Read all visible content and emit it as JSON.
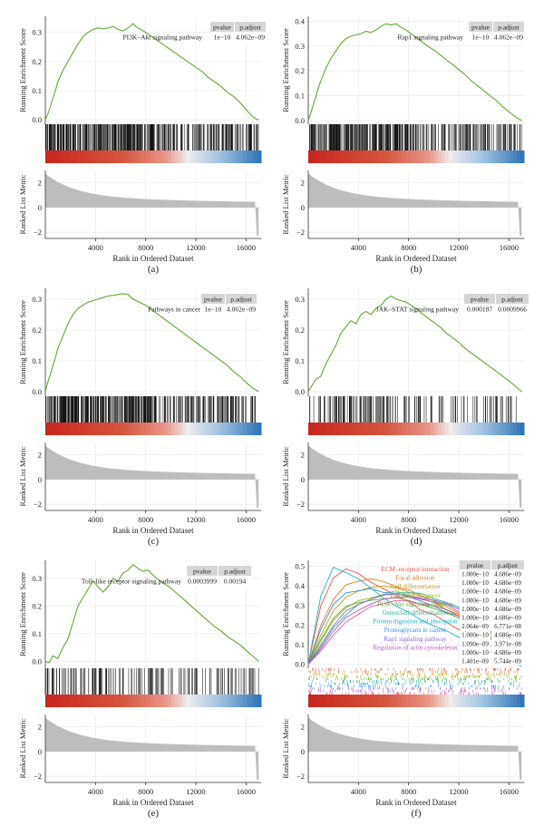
{
  "figure": {
    "colors": {
      "curve": "#5fa832",
      "curve_f": [
        "#e8534a",
        "#e07b2a",
        "#c9a017",
        "#9ab51c",
        "#5fb037",
        "#2db08e",
        "#1fb2c9",
        "#3b8fd8",
        "#8c6ad6",
        "#c054c3",
        "#e0559a"
      ],
      "ranked": "#bdbdbd",
      "table_header": "#d6d6d6",
      "grid": "#ebebeb"
    }
  },
  "panels": [
    {
      "id": "a",
      "caption": "(a)",
      "pathway": "PI3K–Akt signaling pathway",
      "table": {
        "headers": [
          "pvalue",
          "p.adjust"
        ],
        "rows": [
          [
            "1e−10",
            "4.062e−09"
          ]
        ]
      },
      "ticks_es": [
        "0.3",
        "0.2",
        "0.1",
        "0.0"
      ],
      "ticks_es_values": [
        0.3,
        0.2,
        0.1,
        0.0
      ],
      "es_ylim": [
        -0.015,
        0.355
      ],
      "ticks_rlm": [
        "2",
        "0",
        "−2"
      ],
      "ticks_rlm_values": [
        2,
        0,
        -2
      ],
      "ticks_x": [
        "4000",
        "8000",
        "12000",
        "16000"
      ],
      "ticks_x_values": [
        4000,
        8000,
        12000,
        16000
      ],
      "ylabel_es": "Running Enrichment Score",
      "ylabel_rlm": "Ranked List Metric",
      "xlabel": "Rank in Ordered Dataset",
      "chart_data": {
        "type": "line",
        "x": [
          0,
          200,
          500,
          800,
          1000,
          1400,
          1800,
          2200,
          2600,
          3000,
          3400,
          3800,
          4200,
          4600,
          5000,
          5400,
          5800,
          6200,
          6600,
          7000,
          7200,
          7600,
          8000,
          8500,
          9000,
          9500,
          10000,
          10500,
          11000,
          11500,
          12000,
          12500,
          13000,
          13500,
          14000,
          14500,
          15000,
          15500,
          16000,
          16500,
          16800,
          17000
        ],
        "y": [
          0.0,
          0.02,
          0.06,
          0.1,
          0.13,
          0.17,
          0.2,
          0.23,
          0.26,
          0.285,
          0.3,
          0.31,
          0.315,
          0.312,
          0.315,
          0.32,
          0.31,
          0.305,
          0.315,
          0.33,
          0.32,
          0.31,
          0.3,
          0.285,
          0.27,
          0.255,
          0.24,
          0.225,
          0.21,
          0.195,
          0.18,
          0.165,
          0.145,
          0.13,
          0.115,
          0.095,
          0.08,
          0.06,
          0.035,
          0.012,
          0.003,
          0.0
        ]
      }
    },
    {
      "id": "b",
      "caption": "(b)",
      "pathway": "Rap1 signaling pathway",
      "table": {
        "headers": [
          "pvalue",
          "p.adjust"
        ],
        "rows": [
          [
            "1e−10",
            "4.062e−09"
          ]
        ]
      },
      "ticks_es": [
        "0.4",
        "0.3",
        "0.2",
        "0.1",
        "0.0"
      ],
      "ticks_es_values": [
        0.4,
        0.3,
        0.2,
        0.1,
        0.0
      ],
      "es_ylim": [
        -0.015,
        0.42
      ],
      "ticks_rlm": [
        "2",
        "0",
        "−2"
      ],
      "ticks_rlm_values": [
        2,
        0,
        -2
      ],
      "ticks_x": [
        "4000",
        "8000",
        "12000",
        "16000"
      ],
      "ticks_x_values": [
        4000,
        8000,
        12000,
        16000
      ],
      "ylabel_es": "Running Enrichment Score",
      "ylabel_rlm": "Ranked List Metric",
      "xlabel": "Rank in Ordered Dataset",
      "chart_data": {
        "type": "line",
        "x": [
          0,
          200,
          500,
          800,
          1000,
          1400,
          1800,
          2200,
          2600,
          3000,
          3400,
          3800,
          4200,
          4600,
          5000,
          5400,
          5800,
          6200,
          6600,
          7000,
          7400,
          7800,
          8200,
          8600,
          9000,
          9500,
          10000,
          10500,
          11000,
          11500,
          12000,
          12500,
          13000,
          13500,
          14000,
          14500,
          15000,
          15500,
          16000,
          16500,
          17000
        ],
        "y": [
          0.0,
          0.03,
          0.08,
          0.13,
          0.16,
          0.21,
          0.25,
          0.28,
          0.31,
          0.33,
          0.34,
          0.345,
          0.35,
          0.36,
          0.355,
          0.365,
          0.38,
          0.39,
          0.385,
          0.39,
          0.375,
          0.365,
          0.35,
          0.335,
          0.32,
          0.3,
          0.285,
          0.265,
          0.245,
          0.225,
          0.205,
          0.185,
          0.16,
          0.14,
          0.12,
          0.1,
          0.08,
          0.055,
          0.035,
          0.015,
          0.0
        ]
      }
    },
    {
      "id": "c",
      "caption": "(c)",
      "pathway": "Pathways in cancer",
      "table": {
        "headers": [
          "pvalue",
          "p.adjust"
        ],
        "rows": [
          [
            "1e−10",
            "4.062e−09"
          ]
        ]
      },
      "ticks_es": [
        "0.3",
        "0.2",
        "0.1",
        "0.0"
      ],
      "ticks_es_values": [
        0.3,
        0.2,
        0.1,
        0.0
      ],
      "es_ylim": [
        -0.015,
        0.335
      ],
      "ticks_rlm": [
        "2",
        "0",
        "−2"
      ],
      "ticks_rlm_values": [
        2,
        0,
        -2
      ],
      "ticks_x": [
        "4000",
        "8000",
        "12000",
        "16000"
      ],
      "ticks_x_values": [
        4000,
        8000,
        12000,
        16000
      ],
      "ylabel_es": "Running Enrichment Score",
      "ylabel_rlm": "Ranked List Metric",
      "xlabel": "Rank in Ordered Dataset",
      "chart_data": {
        "type": "line",
        "x": [
          0,
          200,
          500,
          800,
          1000,
          1400,
          1800,
          2200,
          2600,
          3000,
          3400,
          3800,
          4200,
          4600,
          5000,
          5400,
          5800,
          6200,
          6600,
          7000,
          7500,
          8000,
          8500,
          9000,
          9500,
          10000,
          10500,
          11000,
          11500,
          12000,
          12500,
          13000,
          13500,
          14000,
          14500,
          15000,
          15500,
          16000,
          16500,
          17000
        ],
        "y": [
          0.0,
          0.03,
          0.07,
          0.11,
          0.14,
          0.18,
          0.22,
          0.25,
          0.27,
          0.28,
          0.29,
          0.295,
          0.3,
          0.305,
          0.31,
          0.312,
          0.315,
          0.318,
          0.315,
          0.3,
          0.29,
          0.28,
          0.265,
          0.25,
          0.235,
          0.22,
          0.205,
          0.19,
          0.175,
          0.16,
          0.145,
          0.13,
          0.115,
          0.1,
          0.085,
          0.065,
          0.05,
          0.03,
          0.012,
          0.0
        ]
      }
    },
    {
      "id": "d",
      "caption": "(d)",
      "pathway": "JAK–STAT signaling pathway",
      "table": {
        "headers": [
          "pvalue",
          "p.adjust"
        ],
        "rows": [
          [
            "0.000187",
            "0.0009966"
          ]
        ]
      },
      "ticks_es": [
        "0.3",
        "0.2",
        "0.1",
        "0.0"
      ],
      "ticks_es_values": [
        0.3,
        0.2,
        0.1,
        0.0
      ],
      "es_ylim": [
        -0.015,
        0.335
      ],
      "ticks_rlm": [
        "2",
        "0",
        "−2"
      ],
      "ticks_rlm_values": [
        2,
        0,
        -2
      ],
      "ticks_x": [
        "4000",
        "8000",
        "12000",
        "16000"
      ],
      "ticks_x_values": [
        4000,
        8000,
        12000,
        16000
      ],
      "ylabel_es": "Running Enrichment Score",
      "ylabel_rlm": "Ranked List Metric",
      "xlabel": "Rank in Ordered Dataset",
      "chart_data": {
        "type": "line",
        "x": [
          0,
          300,
          600,
          1000,
          1400,
          1800,
          2200,
          2600,
          3000,
          3400,
          3800,
          4200,
          4600,
          5000,
          5400,
          5800,
          6200,
          6600,
          7000,
          7400,
          7800,
          8200,
          8600,
          9000,
          9500,
          10000,
          10500,
          11000,
          11500,
          12000,
          12500,
          13000,
          13500,
          14000,
          14500,
          15000,
          15500,
          16000,
          16500,
          17000
        ],
        "y": [
          0.0,
          0.02,
          0.04,
          0.05,
          0.09,
          0.12,
          0.15,
          0.19,
          0.21,
          0.23,
          0.22,
          0.25,
          0.26,
          0.25,
          0.27,
          0.28,
          0.3,
          0.31,
          0.3,
          0.295,
          0.29,
          0.28,
          0.27,
          0.255,
          0.24,
          0.225,
          0.21,
          0.19,
          0.175,
          0.16,
          0.14,
          0.125,
          0.11,
          0.095,
          0.08,
          0.065,
          0.05,
          0.035,
          0.018,
          0.0
        ]
      }
    },
    {
      "id": "e",
      "caption": "(e)",
      "pathway": "Toll–like receptor signaling pathway",
      "table": {
        "headers": [
          "pvalue",
          "p.adjust"
        ],
        "rows": [
          [
            "0.0003999",
            "0.00194"
          ]
        ]
      },
      "ticks_es": [
        "0.3",
        "0.2",
        "0.1",
        "0.0"
      ],
      "ticks_es_values": [
        0.3,
        0.2,
        0.1,
        0.0
      ],
      "es_ylim": [
        -0.025,
        0.365
      ],
      "ticks_rlm": [
        "2",
        "0",
        "−2"
      ],
      "ticks_rlm_values": [
        2,
        0,
        -2
      ],
      "ticks_x": [
        "4000",
        "8000",
        "12000",
        "16000"
      ],
      "ticks_x_values": [
        4000,
        8000,
        12000,
        16000
      ],
      "ylabel_es": "Running Enrichment Score",
      "ylabel_rlm": "Ranked List Metric",
      "xlabel": "Rank in Ordered Dataset",
      "chart_data": {
        "type": "line",
        "x": [
          0,
          300,
          600,
          1000,
          1400,
          1800,
          2200,
          2600,
          3000,
          3400,
          3800,
          4200,
          4600,
          5000,
          5400,
          5800,
          6200,
          6600,
          7000,
          7400,
          7800,
          8200,
          8600,
          9000,
          9500,
          10000,
          10500,
          11000,
          11500,
          12000,
          12500,
          13000,
          13500,
          14000,
          14500,
          15000,
          15500,
          16000,
          16500,
          17000
        ],
        "y": [
          0.0,
          -0.005,
          0.02,
          0.01,
          0.05,
          0.08,
          0.14,
          0.2,
          0.23,
          0.26,
          0.29,
          0.27,
          0.25,
          0.27,
          0.3,
          0.29,
          0.32,
          0.33,
          0.35,
          0.335,
          0.325,
          0.33,
          0.31,
          0.295,
          0.28,
          0.265,
          0.245,
          0.225,
          0.205,
          0.185,
          0.165,
          0.145,
          0.125,
          0.11,
          0.09,
          0.075,
          0.06,
          0.04,
          0.02,
          0.0
        ]
      }
    }
  ],
  "panel_f": {
    "id": "f",
    "caption": "(f)",
    "table_headers": [
      "pvalue",
      "p.adjust"
    ],
    "ticks_es": [
      "0.5",
      "0.4",
      "0.3",
      "0.2",
      "0.1",
      "0.0"
    ],
    "ticks_es_values": [
      0.5,
      0.4,
      0.3,
      0.2,
      0.1,
      0.0
    ],
    "es_ylim": [
      -0.02,
      0.53
    ],
    "ticks_rlm": [
      "2",
      "0",
      "−2"
    ],
    "ticks_rlm_values": [
      2,
      0,
      -2
    ],
    "ticks_x": [
      "4000",
      "8000",
      "12000",
      "16000"
    ],
    "ticks_x_values": [
      4000,
      8000,
      12000,
      16000
    ],
    "ylabel_es": "Running Enrichment Score",
    "ylabel_rlm": "Ranked List Metric",
    "xlabel": "Rank in Ordered Dataset",
    "chart_data": {
      "type": "line",
      "x": [
        0,
        1000,
        2000,
        3000,
        4000,
        5000,
        6000,
        7000,
        8000,
        9000,
        10000,
        11000,
        12000,
        13000,
        14000,
        15000,
        16000,
        17000
      ],
      "series": [
        {
          "name": "ECM–receptor interaction",
          "pvalue": "1.000e−10",
          "padjust": "4.686e−09",
          "values": [
            0.0,
            0.3,
            0.44,
            0.49,
            0.46,
            0.42,
            0.38,
            0.35,
            0.32,
            0.28,
            0.25,
            0.21,
            0.18,
            0.15,
            0.11,
            0.08,
            0.04,
            0.0
          ]
        },
        {
          "name": "Focal adhesion",
          "pvalue": "1.000e−10",
          "padjust": "4.686e−09",
          "values": [
            0.0,
            0.2,
            0.33,
            0.4,
            0.42,
            0.43,
            0.42,
            0.4,
            0.38,
            0.35,
            0.32,
            0.28,
            0.25,
            0.21,
            0.17,
            0.12,
            0.07,
            0.0
          ]
        },
        {
          "name": "Cell differentiation",
          "pvalue": "1.000e−10",
          "padjust": "4.686e−09",
          "values": [
            0.0,
            0.15,
            0.27,
            0.34,
            0.37,
            0.39,
            0.4,
            0.39,
            0.37,
            0.35,
            0.32,
            0.29,
            0.26,
            0.22,
            0.18,
            0.13,
            0.07,
            0.0
          ]
        },
        {
          "name": "Pathways in cancer",
          "pvalue": "1.000e−10",
          "padjust": "4.686e−09",
          "values": [
            0.0,
            0.12,
            0.22,
            0.29,
            0.32,
            0.34,
            0.36,
            0.37,
            0.35,
            0.33,
            0.31,
            0.28,
            0.25,
            0.21,
            0.17,
            0.12,
            0.06,
            0.0
          ]
        },
        {
          "name": "PI3K–Akt signaling pathway",
          "pvalue": "1.000e−10",
          "padjust": "4.686e−09",
          "values": [
            0.0,
            0.13,
            0.23,
            0.29,
            0.31,
            0.32,
            0.33,
            0.34,
            0.33,
            0.31,
            0.29,
            0.26,
            0.23,
            0.19,
            0.15,
            0.11,
            0.05,
            0.0
          ]
        },
        {
          "name": "Osteoclast differentiation",
          "pvalue": "1.000e−10",
          "padjust": "4.686e−09",
          "values": [
            0.0,
            0.09,
            0.18,
            0.25,
            0.3,
            0.33,
            0.35,
            0.36,
            0.37,
            0.36,
            0.34,
            0.32,
            0.29,
            0.25,
            0.2,
            0.14,
            0.07,
            0.0
          ]
        },
        {
          "name": "Protein digestion and absorption",
          "pvalue": "2.064e−09",
          "padjust": "6.771e−08",
          "values": [
            0.0,
            0.35,
            0.5,
            0.47,
            0.43,
            0.39,
            0.34,
            0.3,
            0.26,
            0.23,
            0.2,
            0.17,
            0.14,
            0.11,
            0.08,
            0.05,
            0.02,
            -0.01
          ]
        },
        {
          "name": "Proteoglycans in cancer",
          "pvalue": "1.000e−10",
          "padjust": "4.686e−09",
          "values": [
            0.0,
            0.18,
            0.31,
            0.37,
            0.38,
            0.38,
            0.37,
            0.36,
            0.34,
            0.32,
            0.3,
            0.27,
            0.24,
            0.2,
            0.16,
            0.12,
            0.06,
            0.0
          ]
        },
        {
          "name": "Rap1 signaling pathway",
          "pvalue": "1.090e−09",
          "padjust": "3.971e−08",
          "values": [
            0.0,
            0.1,
            0.2,
            0.27,
            0.31,
            0.33,
            0.35,
            0.36,
            0.35,
            0.34,
            0.33,
            0.31,
            0.28,
            0.24,
            0.2,
            0.14,
            0.08,
            0.0
          ]
        },
        {
          "name": "Regulation of actin cytoskeleton",
          "pvalue": "1.000e−10",
          "padjust": "4.686e−09",
          "values": [
            0.0,
            0.08,
            0.17,
            0.24,
            0.28,
            0.31,
            0.33,
            0.34,
            0.34,
            0.33,
            0.32,
            0.3,
            0.27,
            0.23,
            0.19,
            0.14,
            0.08,
            0.0
          ]
        },
        {
          "name": "",
          "pvalue": "1.401e−09",
          "padjust": "5.744e−09",
          "values": [
            0.0,
            0.07,
            0.15,
            0.22,
            0.26,
            0.29,
            0.31,
            0.32,
            0.32,
            0.31,
            0.3,
            0.28,
            0.25,
            0.22,
            0.18,
            0.13,
            0.07,
            0.0
          ]
        }
      ]
    }
  }
}
